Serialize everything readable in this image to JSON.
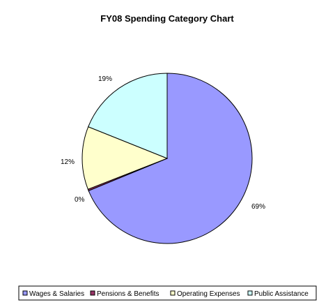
{
  "chart_data": {
    "type": "pie",
    "title": "FY08 Spending Category Chart",
    "slices": [
      {
        "name": "Wages & Salaries",
        "value": 69,
        "label": "69%",
        "color": "#9999ff"
      },
      {
        "name": "Pensions & Benefits",
        "value": 0.3,
        "label": "0%",
        "color": "#993366"
      },
      {
        "name": "Operating Expenses",
        "value": 12,
        "label": "12%",
        "color": "#ffffcc"
      },
      {
        "name": "Public Assistance",
        "value": 19,
        "label": "19%",
        "color": "#ccffff"
      }
    ],
    "legend_position": "bottom",
    "start_angle_deg": 0,
    "direction": "clockwise"
  }
}
